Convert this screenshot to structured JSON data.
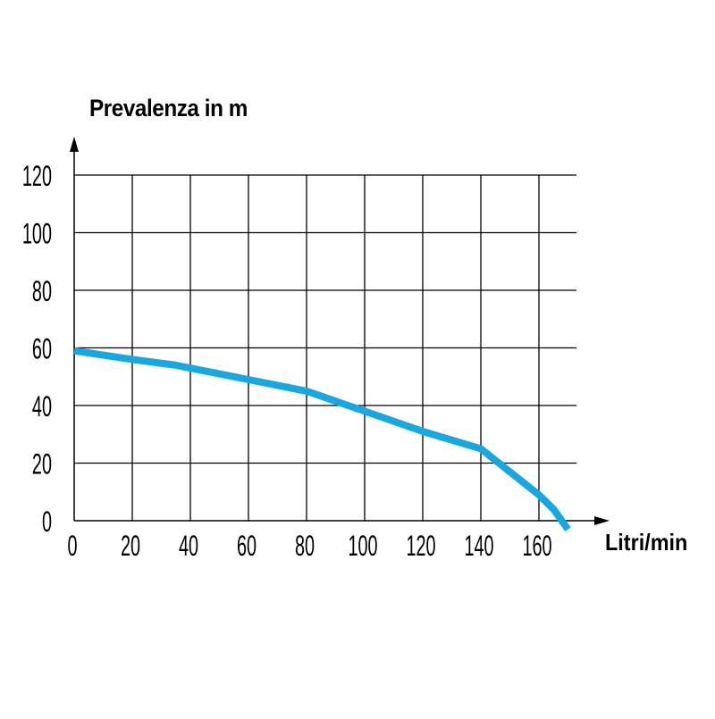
{
  "chart_data": {
    "type": "line",
    "title": "",
    "ylabel": "Prevalenza in m",
    "xlabel": "Litri/min",
    "x_ticks": [
      0,
      20,
      40,
      60,
      80,
      100,
      120,
      140,
      160
    ],
    "y_ticks": [
      0,
      20,
      40,
      60,
      80,
      100,
      120
    ],
    "xlim": [
      0,
      173
    ],
    "ylim": [
      0,
      120
    ],
    "grid": true,
    "series": [
      {
        "color": "#1aa7e0",
        "x": [
          0,
          20,
          35,
          60,
          80,
          100,
          120,
          140,
          150,
          160,
          165,
          170
        ],
        "y": [
          59,
          56,
          54,
          49,
          45,
          38,
          31,
          25,
          17,
          9,
          4,
          -3
        ]
      }
    ]
  }
}
